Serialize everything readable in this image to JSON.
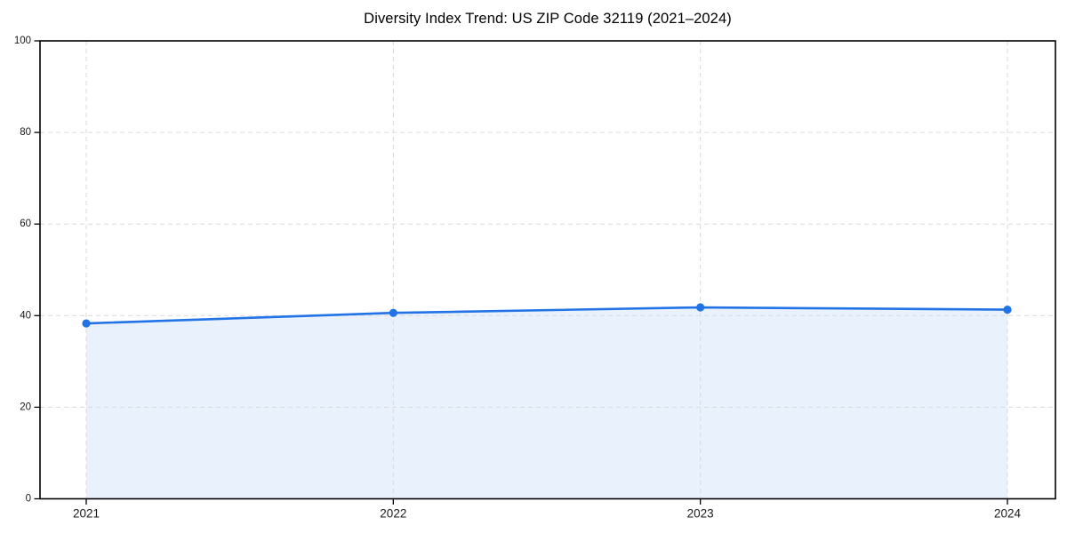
{
  "chart_data": {
    "type": "line",
    "title": "Diversity Index Trend: US ZIP Code 32119 (2021–2024)",
    "categories": [
      "2021",
      "2022",
      "2023",
      "2024"
    ],
    "series": [
      {
        "name": "Diversity Index",
        "values": [
          38.3,
          40.6,
          41.8,
          41.3
        ]
      }
    ],
    "xlabel": "",
    "ylabel": "",
    "ylim": [
      0,
      100
    ],
    "yticks": [
      0,
      20,
      40,
      60,
      80,
      100
    ],
    "grid": true,
    "grid_style": "dashed",
    "legend": "none",
    "area_fill": true,
    "markers": true,
    "colors": {
      "line": "#2273e6",
      "marker": "#2273e6",
      "area_fill": "#e9f1fc",
      "grid": "#d9d9d9",
      "spine": "#000000",
      "tick": "#000000",
      "tick_label": "#1a1a1a",
      "title": "#000000",
      "background": "#ffffff"
    }
  }
}
